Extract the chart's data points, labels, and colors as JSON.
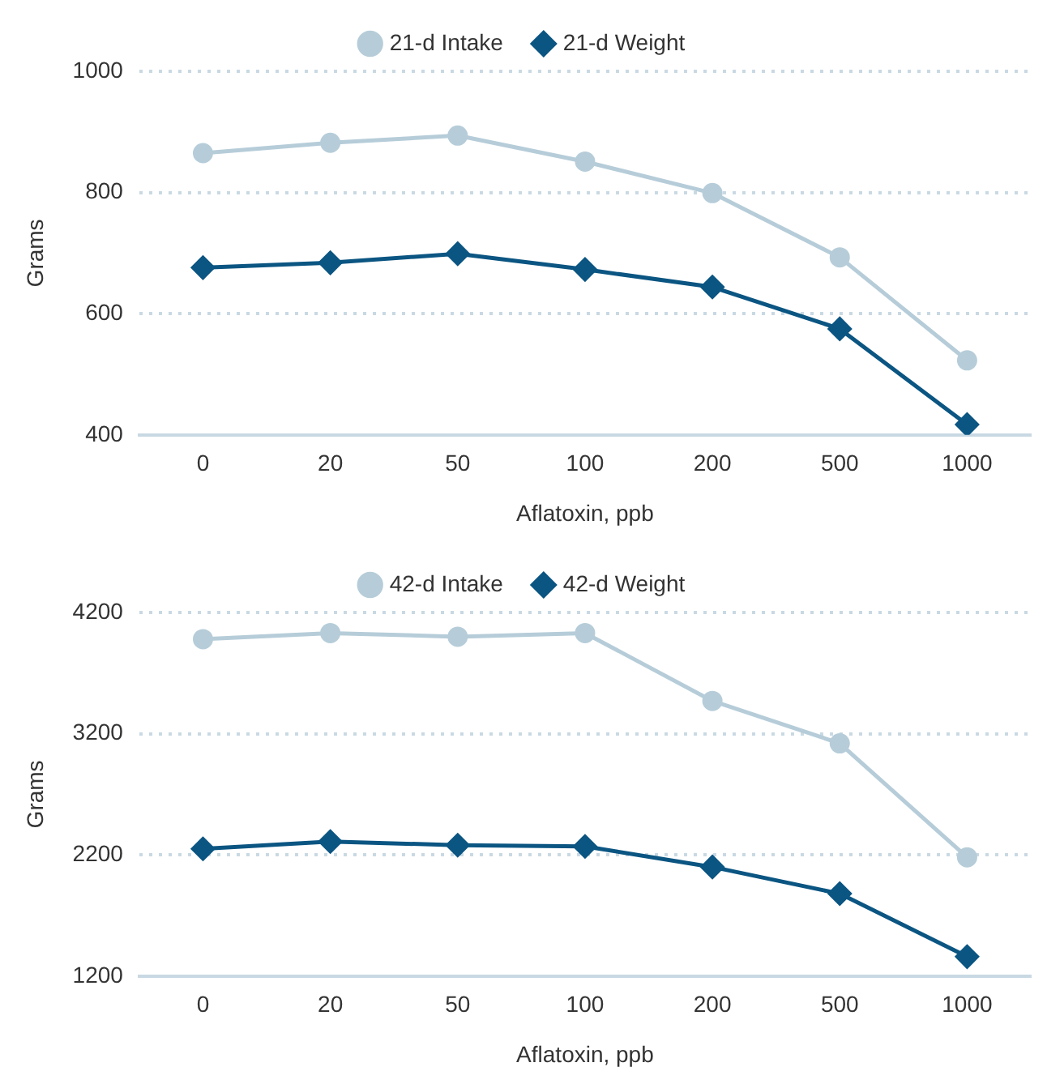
{
  "chart_data": [
    {
      "type": "line",
      "categories": [
        "0",
        "20",
        "50",
        "100",
        "200",
        "500",
        "1000"
      ],
      "xlabel": "Aflatoxin, ppb",
      "ylabel": "Grams",
      "ylim": [
        400,
        1000
      ],
      "yticks": [
        400,
        600,
        800,
        1000
      ],
      "grid": "y",
      "legend": "top",
      "series": [
        {
          "name": "21-d Intake",
          "color": "#b6cdd9",
          "marker": "circle",
          "values": [
            865,
            882,
            894,
            851,
            799,
            693,
            523
          ]
        },
        {
          "name": "21-d Weight",
          "color": "#0b5582",
          "marker": "diamond",
          "values": [
            676,
            684,
            699,
            673,
            644,
            575,
            417
          ]
        }
      ]
    },
    {
      "type": "line",
      "categories": [
        "0",
        "20",
        "50",
        "100",
        "200",
        "500",
        "1000"
      ],
      "xlabel": "Aflatoxin, ppb",
      "ylabel": "Grams",
      "ylim": [
        1200,
        4200
      ],
      "yticks": [
        1200,
        2200,
        3200,
        4200
      ],
      "grid": "y",
      "legend": "top",
      "series": [
        {
          "name": "42-d Intake",
          "color": "#b6cdd9",
          "marker": "circle",
          "values": [
            3980,
            4030,
            4000,
            4030,
            3470,
            3120,
            2180
          ]
        },
        {
          "name": "42-d Weight",
          "color": "#0b5582",
          "marker": "diamond",
          "values": [
            2250,
            2310,
            2280,
            2270,
            2100,
            1880,
            1360
          ]
        }
      ]
    }
  ]
}
